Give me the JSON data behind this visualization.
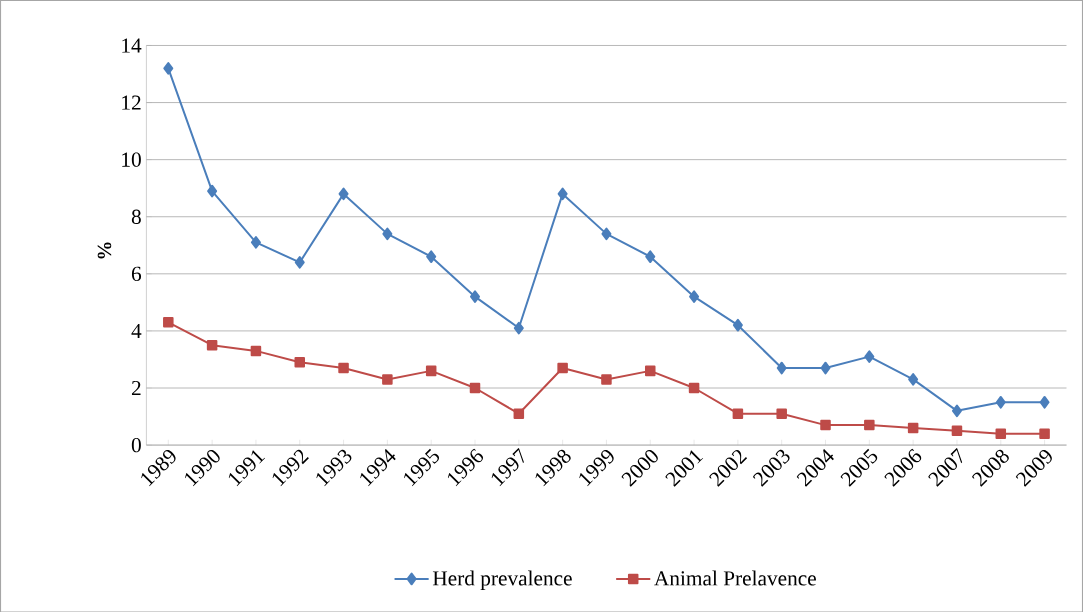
{
  "chart_data": {
    "type": "line",
    "ylabel": "%",
    "categories": [
      "1989",
      "1990",
      "1991",
      "1992",
      "1993",
      "1994",
      "1995",
      "1996",
      "1997",
      "1998",
      "1999",
      "2000",
      "2001",
      "2002",
      "2003",
      "2004",
      "2005",
      "2006",
      "2007",
      "2008",
      "2009"
    ],
    "series": [
      {
        "name": "Herd prevalence",
        "color": "#4a7ebb",
        "marker": "diamond",
        "values": [
          13.2,
          8.9,
          7.1,
          6.4,
          8.8,
          7.4,
          6.6,
          5.2,
          4.1,
          8.8,
          7.4,
          6.6,
          5.2,
          4.2,
          2.7,
          2.7,
          3.1,
          2.3,
          1.2,
          1.5,
          1.5
        ]
      },
      {
        "name": "Animal Prelavence",
        "color": "#be4b48",
        "marker": "square",
        "values": [
          4.3,
          3.5,
          3.3,
          2.9,
          2.7,
          2.3,
          2.6,
          2.0,
          1.1,
          2.7,
          2.3,
          2.6,
          2.0,
          1.1,
          1.1,
          0.7,
          0.7,
          0.6,
          0.5,
          0.4,
          0.4
        ]
      }
    ],
    "ylim": [
      0,
      14
    ],
    "yticks": [
      0,
      2,
      4,
      6,
      8,
      10,
      12,
      14
    ],
    "grid": "y",
    "legend": "bottom",
    "line_style": "solid"
  }
}
